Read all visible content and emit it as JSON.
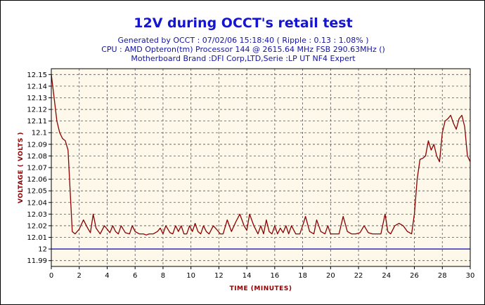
{
  "chart_data": {
    "type": "line",
    "title": "12V during OCCT's retail test",
    "subtitle_lines": [
      "Generated by OCCT : 07/02/06 15:18:40 ( Ripple : 0.13 : 1.08% )",
      "CPU : AMD Opteron(tm) Processor 144    @ 2615.64 MHz FSB 290.63MHz ()",
      "Motherboard Brand :DFI Corp,LTD,Serie :LP UT NF4 Expert"
    ],
    "xlabel": "TIME (MINUTES)",
    "ylabel": "VOLTAGE ( VOLTS )",
    "xlim": [
      0,
      30
    ],
    "ylim": [
      11.985,
      12.155
    ],
    "x_ticks": [
      0,
      2,
      4,
      6,
      8,
      10,
      12,
      14,
      16,
      18,
      20,
      22,
      24,
      26,
      28,
      30
    ],
    "y_ticks": [
      {
        "v": 11.99,
        "label": "11.99"
      },
      {
        "v": 12.0,
        "label": "12"
      },
      {
        "v": 12.01,
        "label": "12.01"
      },
      {
        "v": 12.02,
        "label": "12.02"
      },
      {
        "v": 12.03,
        "label": "12.03"
      },
      {
        "v": 12.04,
        "label": "12.04"
      },
      {
        "v": 12.05,
        "label": "12.05"
      },
      {
        "v": 12.06,
        "label": "12.06"
      },
      {
        "v": 12.07,
        "label": "12.07"
      },
      {
        "v": 12.08,
        "label": "12.08"
      },
      {
        "v": 12.09,
        "label": "12.09"
      },
      {
        "v": 12.1,
        "label": "12.1"
      },
      {
        "v": 12.11,
        "label": "12.11"
      },
      {
        "v": 12.12,
        "label": "12.12"
      },
      {
        "v": 12.13,
        "label": "12.13"
      },
      {
        "v": 12.14,
        "label": "12.14"
      },
      {
        "v": 12.15,
        "label": "12.15"
      }
    ],
    "grid": true,
    "reference_line": {
      "y": 12.0,
      "color": "#0000cc"
    },
    "series": [
      {
        "color": "#8b0000",
        "x": [
          0,
          0.2,
          0.4,
          0.6,
          0.8,
          1.0,
          1.2,
          1.35,
          1.5,
          1.7,
          2.0,
          2.3,
          2.6,
          2.8,
          3.0,
          3.2,
          3.5,
          3.8,
          4.0,
          4.2,
          4.4,
          4.6,
          4.8,
          5.0,
          5.3,
          5.6,
          5.8,
          6.0,
          6.3,
          6.6,
          6.8,
          7.0,
          7.3,
          7.6,
          7.8,
          8.0,
          8.2,
          8.5,
          8.7,
          8.9,
          9.1,
          9.3,
          9.5,
          9.7,
          9.9,
          10.1,
          10.3,
          10.5,
          10.7,
          10.9,
          11.1,
          11.3,
          11.6,
          11.9,
          12.1,
          12.3,
          12.6,
          12.9,
          13.2,
          13.5,
          13.8,
          14.0,
          14.2,
          14.5,
          14.8,
          15.0,
          15.2,
          15.4,
          15.6,
          15.8,
          16.0,
          16.2,
          16.4,
          16.6,
          16.8,
          17.0,
          17.2,
          17.5,
          17.8,
          18.0,
          18.2,
          18.5,
          18.8,
          19.0,
          19.3,
          19.6,
          19.8,
          20.0,
          20.3,
          20.6,
          20.9,
          21.2,
          21.5,
          21.8,
          22.1,
          22.4,
          22.7,
          23.0,
          23.3,
          23.6,
          23.9,
          24.1,
          24.3,
          24.6,
          24.9,
          25.2,
          25.5,
          25.8,
          26.0,
          26.2,
          26.4,
          26.6,
          26.8,
          27.0,
          27.2,
          27.4,
          27.6,
          27.8,
          28.0,
          28.2,
          28.4,
          28.6,
          28.8,
          29.0,
          29.2,
          29.4,
          29.6,
          29.8,
          30.0
        ],
        "y": [
          12.15,
          12.13,
          12.11,
          12.1,
          12.095,
          12.093,
          12.085,
          12.05,
          12.015,
          12.013,
          12.017,
          12.025,
          12.018,
          12.014,
          12.03,
          12.018,
          12.013,
          12.02,
          12.017,
          12.014,
          12.02,
          12.015,
          12.013,
          12.02,
          12.014,
          12.013,
          12.02,
          12.015,
          12.013,
          12.013,
          12.012,
          12.013,
          12.013,
          12.015,
          12.018,
          12.013,
          12.02,
          12.014,
          12.013,
          12.02,
          12.015,
          12.02,
          12.013,
          12.013,
          12.02,
          12.015,
          12.022,
          12.015,
          12.013,
          12.02,
          12.015,
          12.013,
          12.02,
          12.016,
          12.013,
          12.013,
          12.025,
          12.015,
          12.023,
          12.03,
          12.02,
          12.016,
          12.03,
          12.02,
          12.013,
          12.02,
          12.013,
          12.025,
          12.015,
          12.013,
          12.02,
          12.013,
          12.018,
          12.014,
          12.02,
          12.013,
          12.02,
          12.013,
          12.013,
          12.02,
          12.028,
          12.015,
          12.013,
          12.025,
          12.015,
          12.013,
          12.02,
          12.013,
          12.013,
          12.013,
          12.028,
          12.015,
          12.013,
          12.013,
          12.014,
          12.02,
          12.014,
          12.013,
          12.013,
          12.013,
          12.03,
          12.015,
          12.013,
          12.02,
          12.022,
          12.02,
          12.015,
          12.013,
          12.03,
          12.06,
          12.077,
          12.078,
          12.08,
          12.093,
          12.085,
          12.09,
          12.08,
          12.075,
          12.1,
          12.11,
          12.112,
          12.115,
          12.108,
          12.103,
          12.112,
          12.115,
          12.105,
          12.08,
          12.075
        ]
      }
    ]
  }
}
